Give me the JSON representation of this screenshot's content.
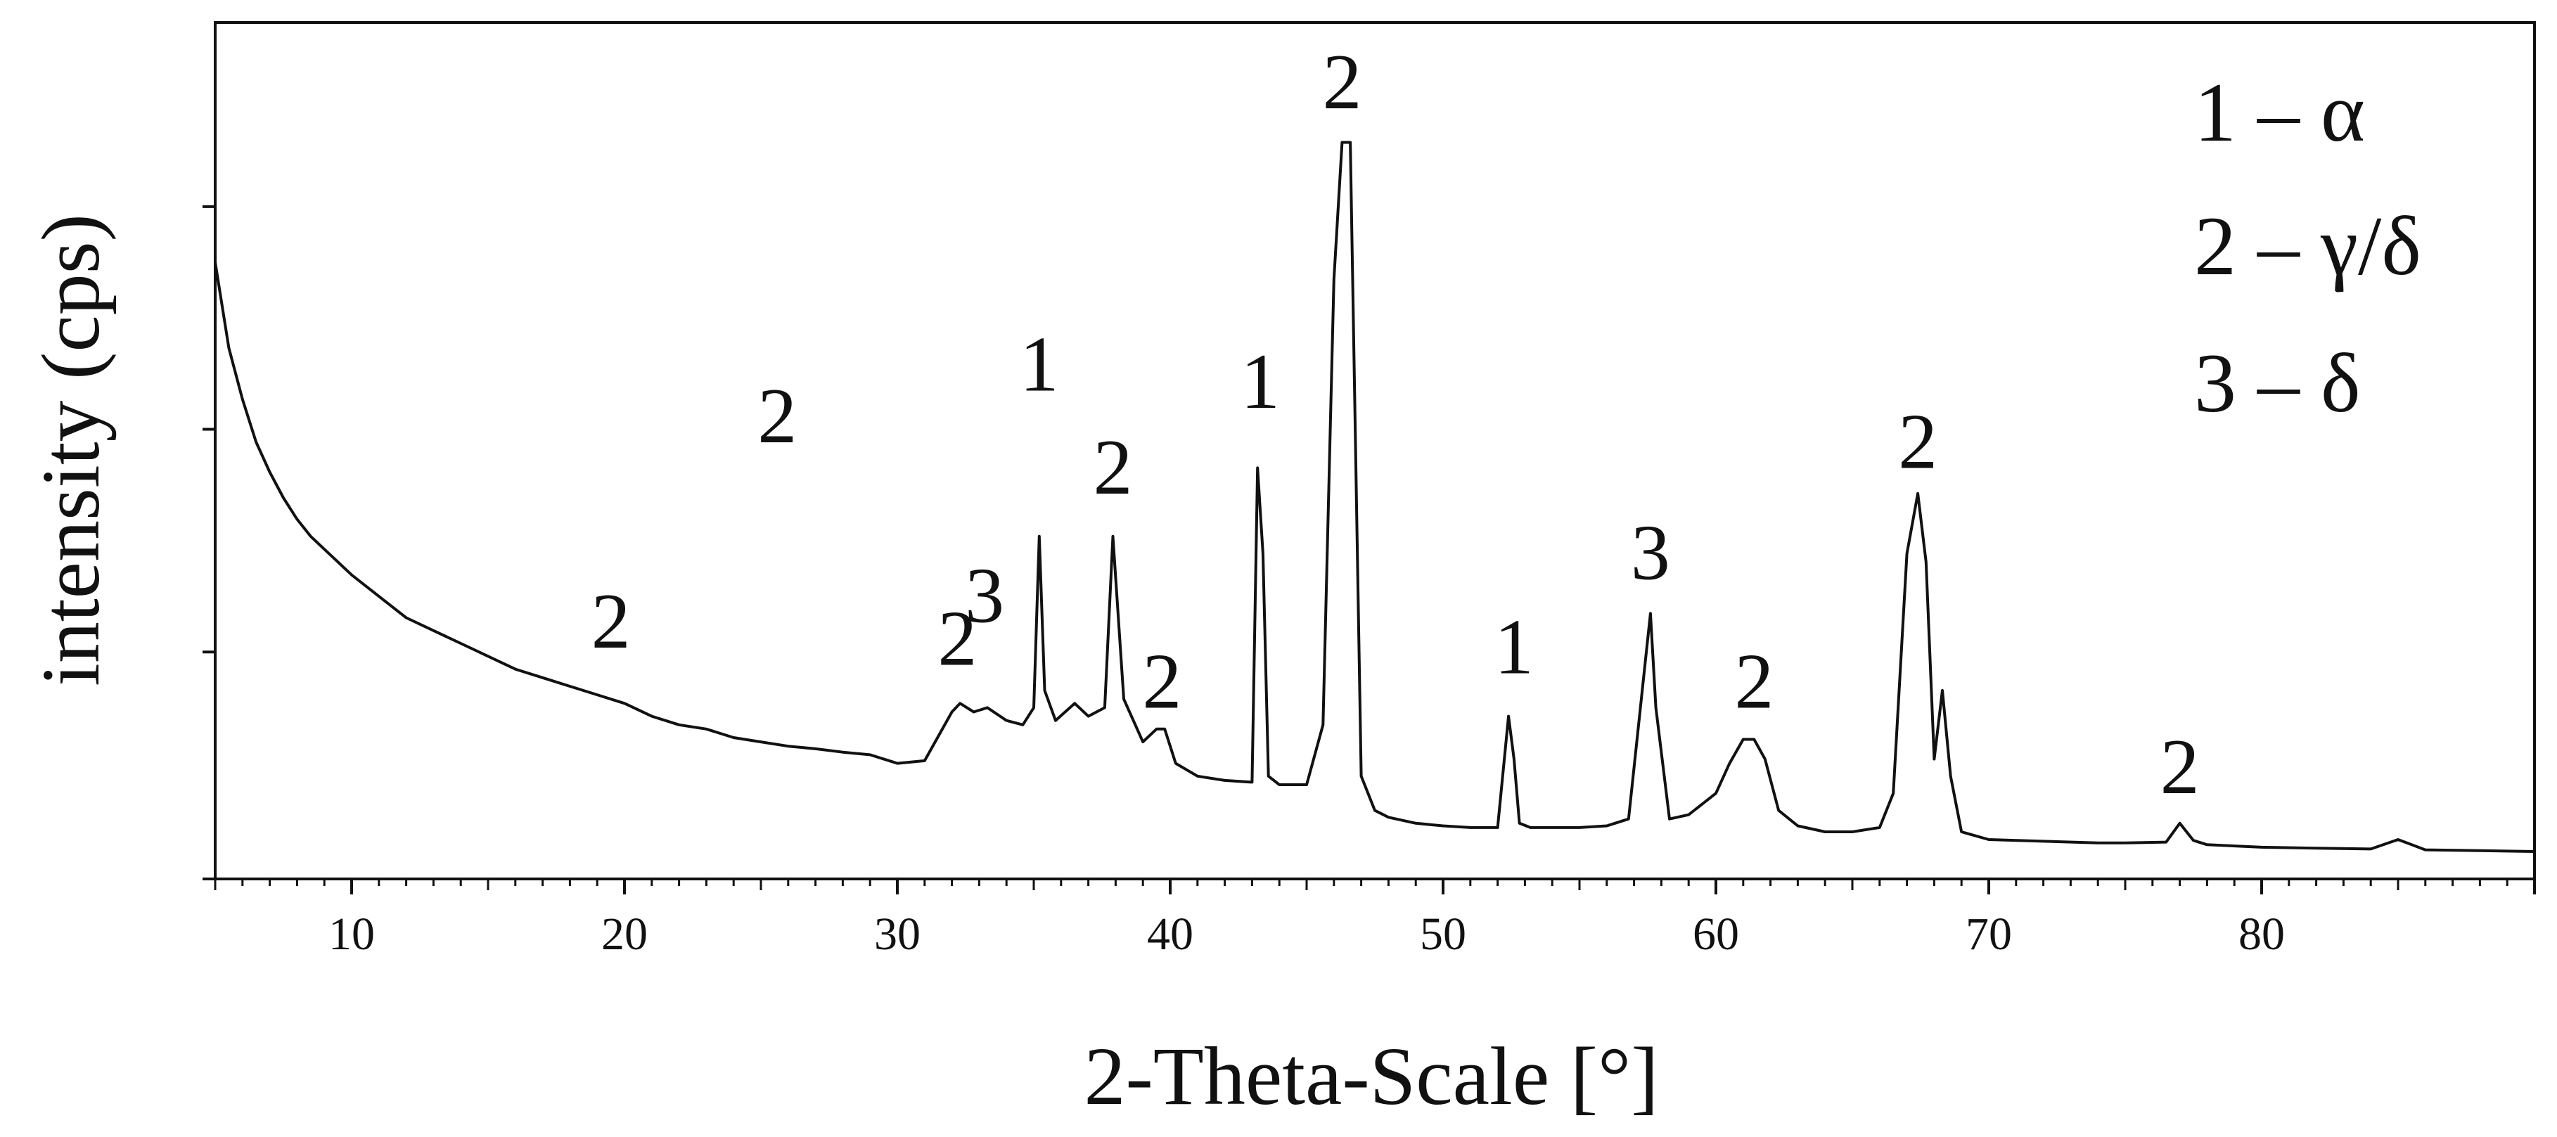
{
  "chart_data": {
    "type": "line",
    "xlabel": "2-Theta-Scale [°]",
    "ylabel": "intensity (cps)",
    "xlim": [
      5,
      90
    ],
    "ylim": [
      0,
      100
    ],
    "x_ticks": [
      10,
      20,
      30,
      40,
      50,
      60,
      70,
      80
    ],
    "x_tick_labels": [
      "10",
      "20",
      "30",
      "40",
      "50",
      "60",
      "70",
      "80"
    ],
    "y_ticks": [
      0,
      26.5,
      52.5,
      78.5
    ],
    "y_tick_labels_shown": false,
    "grid": false,
    "legend": {
      "placement": "top-right",
      "entries": [
        "1 – α",
        "2 – γ/δ",
        "3 – δ"
      ]
    },
    "series": [
      {
        "x": [
          5,
          5.5,
          6,
          6.5,
          7,
          7.5,
          8,
          8.5,
          9,
          9.5,
          10,
          11,
          12,
          13,
          14,
          15,
          16,
          17,
          18,
          19,
          20,
          21,
          22,
          23,
          24,
          25,
          26,
          27,
          28,
          29,
          30,
          31,
          32,
          32.3,
          32.8,
          33.3,
          34,
          34.6,
          35,
          35.2,
          35.4,
          35.8,
          36.5,
          37,
          37.6,
          37.9,
          38.3,
          39,
          39.5,
          39.8,
          40.2,
          41,
          42,
          43,
          43.2,
          43.4,
          43.6,
          44,
          45,
          45.6,
          46,
          46.3,
          46.6,
          47,
          47.5,
          48,
          49,
          50,
          51,
          52,
          52.4,
          52.6,
          52.8,
          53.2,
          54,
          55,
          56,
          56.8,
          57.4,
          57.6,
          57.8,
          58.3,
          59,
          60,
          60.5,
          61,
          61.4,
          61.8,
          62.3,
          63,
          64,
          65,
          66,
          66.5,
          67,
          67.4,
          67.7,
          68,
          68.3,
          68.6,
          69,
          70,
          72,
          74,
          75,
          76.5,
          77,
          77.5,
          78,
          80,
          82,
          84,
          85,
          86,
          88,
          90
        ],
        "y": [
          72,
          62,
          56,
          51,
          47.5,
          44.5,
          42,
          40,
          38.5,
          37,
          35.5,
          33,
          30.5,
          29,
          27.5,
          26,
          24.5,
          23.5,
          22.5,
          21.5,
          20.5,
          19,
          18,
          17.5,
          16.5,
          16,
          15.5,
          15.2,
          14.8,
          14.5,
          13.5,
          13.8,
          19.5,
          20.5,
          19.5,
          20,
          18.5,
          18,
          20,
          40,
          22,
          18.5,
          20.5,
          19,
          20,
          40,
          21,
          16,
          17.5,
          17.5,
          13.5,
          12,
          11.5,
          11.3,
          48,
          38,
          12,
          11,
          11,
          18,
          70,
          86,
          86,
          12,
          8,
          7.2,
          6.5,
          6.2,
          6,
          6,
          19,
          14,
          6.5,
          6,
          6,
          6,
          6.2,
          7,
          25,
          31,
          20,
          7,
          7.5,
          10,
          13.5,
          16.3,
          16.3,
          14,
          8,
          6.2,
          5.5,
          5.5,
          6,
          10,
          38,
          45,
          37,
          14,
          22,
          12,
          5.5,
          4.6,
          4.4,
          4.2,
          4.2,
          4.3,
          6.5,
          4.5,
          4,
          3.7,
          3.6,
          3.5,
          4.6,
          3.4,
          3.3,
          3.2
        ]
      }
    ],
    "annotations": [
      {
        "text": "2",
        "x": 19.5,
        "y": 27
      },
      {
        "text": "2",
        "x": 25.6,
        "y": 51
      },
      {
        "text": "2",
        "x": 32.2,
        "y": 25
      },
      {
        "text": "3",
        "x": 33.2,
        "y": 30
      },
      {
        "text": "1",
        "x": 35.2,
        "y": 57
      },
      {
        "text": "2",
        "x": 37.9,
        "y": 45
      },
      {
        "text": "2",
        "x": 39.7,
        "y": 20
      },
      {
        "text": "1",
        "x": 43.3,
        "y": 55
      },
      {
        "text": "2",
        "x": 46.3,
        "y": 90
      },
      {
        "text": "1",
        "x": 52.6,
        "y": 24
      },
      {
        "text": "3",
        "x": 57.6,
        "y": 35
      },
      {
        "text": "2",
        "x": 61.4,
        "y": 20
      },
      {
        "text": "2",
        "x": 67.4,
        "y": 48
      },
      {
        "text": "2",
        "x": 77.0,
        "y": 10
      }
    ]
  }
}
